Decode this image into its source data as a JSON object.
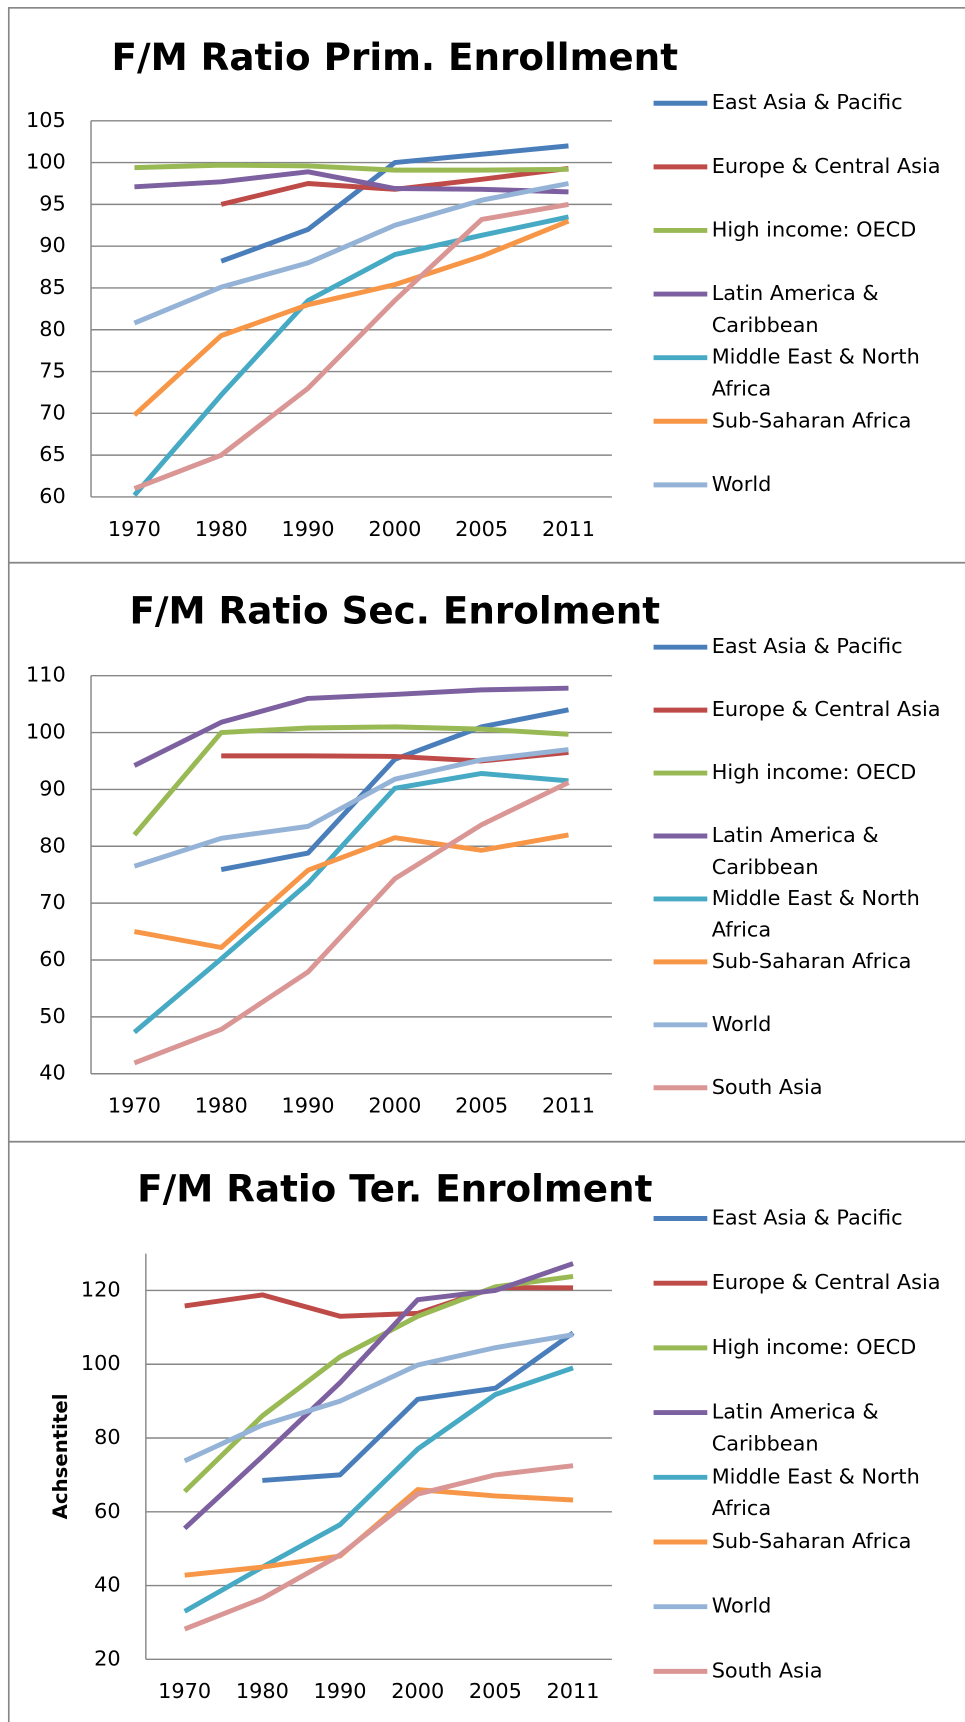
{
  "chart_data": [
    {
      "type": "line",
      "title": "F/M Ratio Prim. Enrollment",
      "categories": [
        "1970",
        "1980",
        "1990",
        "2000",
        "2005",
        "2011"
      ],
      "ylim": [
        60,
        105
      ],
      "yticks": [
        60,
        65,
        70,
        75,
        80,
        85,
        90,
        95,
        100,
        105
      ],
      "grid": true,
      "series": [
        {
          "name": "East Asia & Pacific",
          "color": "#4a7ebb",
          "values": [
            null,
            88.2,
            92,
            100,
            101,
            102
          ]
        },
        {
          "name": "Europe & Central Asia",
          "color": "#be4b48",
          "values": [
            null,
            95,
            97.5,
            96.8,
            98,
            99.3
          ]
        },
        {
          "name": "High income: OECD",
          "color": "#98b954",
          "values": [
            99.4,
            99.7,
            99.6,
            99.1,
            99.1,
            99.2
          ]
        },
        {
          "name": "Latin America & Caribbean",
          "color": "#7d60a0",
          "values": [
            97.1,
            97.7,
            98.9,
            96.9,
            96.8,
            96.5
          ]
        },
        {
          "name": "Middle East & North Africa",
          "color": "#46aac5",
          "values": [
            60.2,
            72.2,
            83.5,
            89,
            91.3,
            93.5
          ]
        },
        {
          "name": "Sub-Saharan Africa",
          "color": "#f79646",
          "values": [
            69.8,
            79.3,
            83,
            85.4,
            88.8,
            93
          ]
        },
        {
          "name": "World",
          "color": "#95b3d7",
          "values": [
            80.8,
            85.1,
            88,
            92.5,
            95.5,
            97.5
          ]
        },
        {
          "color": "#d99694",
          "values": [
            61,
            65,
            73,
            83.5,
            93.2,
            95
          ]
        }
      ]
    },
    {
      "type": "line",
      "title": "F/M Ratio Sec. Enrolment",
      "categories": [
        "1970",
        "1980",
        "1990",
        "2000",
        "2005",
        "2011"
      ],
      "ylim": [
        40,
        110
      ],
      "yticks": [
        40,
        50,
        60,
        70,
        80,
        90,
        100,
        110
      ],
      "grid": true,
      "series": [
        {
          "name": "East Asia & Pacific",
          "color": "#4a7ebb",
          "values": [
            null,
            75.9,
            78.8,
            95.3,
            101,
            104
          ]
        },
        {
          "name": "Europe & Central Asia",
          "color": "#be4b48",
          "values": [
            null,
            95.9,
            95.9,
            95.8,
            95,
            96.5
          ]
        },
        {
          "name": "High income: OECD",
          "color": "#98b954",
          "values": [
            82,
            100,
            100.8,
            101,
            100.6,
            99.7
          ]
        },
        {
          "name": "Latin America & Caribbean",
          "color": "#7d60a0",
          "values": [
            94.2,
            101.8,
            106,
            106.7,
            107.5,
            107.8
          ]
        },
        {
          "name": "Middle East & North Africa",
          "color": "#46aac5",
          "values": [
            47.3,
            60.2,
            73.5,
            90.2,
            92.8,
            91.5
          ]
        },
        {
          "name": "Sub-Saharan Africa",
          "color": "#f79646",
          "values": [
            65,
            62.2,
            75.8,
            81.5,
            79.3,
            82
          ]
        },
        {
          "name": "World",
          "color": "#95b3d7",
          "values": [
            76.5,
            81.4,
            83.5,
            91.8,
            95.2,
            97
          ]
        },
        {
          "name": "South Asia",
          "color": "#d99694",
          "values": [
            41.9,
            47.8,
            57.9,
            74.3,
            83.8,
            91.2
          ]
        }
      ]
    },
    {
      "type": "line",
      "title": "F/M Ratio Ter. Enrolment",
      "y_label": "Achsentitel",
      "categories": [
        "1970",
        "1980",
        "1990",
        "2000",
        "2005",
        "2011"
      ],
      "ylim": [
        20,
        130
      ],
      "yticks": [
        20,
        40,
        60,
        80,
        100,
        120
      ],
      "grid": true,
      "series": [
        {
          "name": "East Asia & Pacific",
          "color": "#4a7ebb",
          "values": [
            null,
            68.5,
            70,
            90.5,
            93.5,
            108.5
          ]
        },
        {
          "name": "Europe & Central Asia",
          "color": "#be4b48",
          "values": [
            115.8,
            118.8,
            113,
            113.8,
            120.8,
            120.7
          ]
        },
        {
          "name": "High income: OECD",
          "color": "#98b954",
          "values": [
            65.5,
            86,
            102,
            113,
            121,
            123.8
          ]
        },
        {
          "name": "Latin America & Caribbean",
          "color": "#7d60a0",
          "values": [
            55.5,
            75,
            95,
            117.5,
            120,
            127.3
          ]
        },
        {
          "name": "Middle East & North Africa",
          "color": "#46aac5",
          "values": [
            33,
            45,
            56.5,
            77,
            91.8,
            99
          ]
        },
        {
          "name": "Sub-Saharan Africa",
          "color": "#f79646",
          "values": [
            42.8,
            45,
            48,
            66,
            64.3,
            63.2
          ]
        },
        {
          "name": "World",
          "color": "#95b3d7",
          "values": [
            73.8,
            83.5,
            90,
            99.8,
            104.5,
            108
          ]
        },
        {
          "name": "South Asia",
          "color": "#d99694",
          "values": [
            28.2,
            36.5,
            48.3,
            64.8,
            70,
            72.5
          ]
        }
      ]
    }
  ]
}
